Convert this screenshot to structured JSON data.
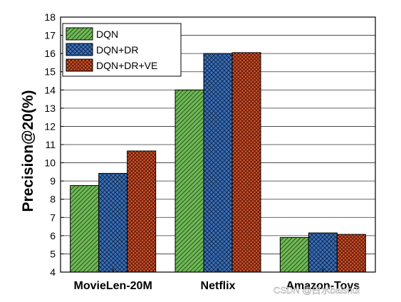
{
  "chart_data": {
    "type": "bar",
    "title": "",
    "xlabel": "",
    "ylabel": "Precision@20(%)",
    "ylim": [
      4,
      18
    ],
    "yticks": [
      4,
      5,
      6,
      7,
      8,
      9,
      10,
      11,
      12,
      13,
      14,
      15,
      16,
      17,
      18
    ],
    "categories": [
      "MovieLen-20M",
      "Netflix",
      "Amazon-Toys"
    ],
    "series": [
      {
        "name": "DQN",
        "values": [
          8.75,
          14.0,
          5.9
        ],
        "color": "#6fb857",
        "hatch": "diagonal"
      },
      {
        "name": "DQN+DR",
        "values": [
          9.42,
          16.0,
          6.15
        ],
        "color": "#3a70b8",
        "hatch": "cross"
      },
      {
        "name": "DQN+DR+VE",
        "values": [
          10.65,
          16.05,
          6.07
        ],
        "color": "#d4522a",
        "hatch": "cross-dense"
      }
    ],
    "grid": "horizontal",
    "legend_position": "top-left"
  },
  "watermark": "CSDN @白水baishui"
}
